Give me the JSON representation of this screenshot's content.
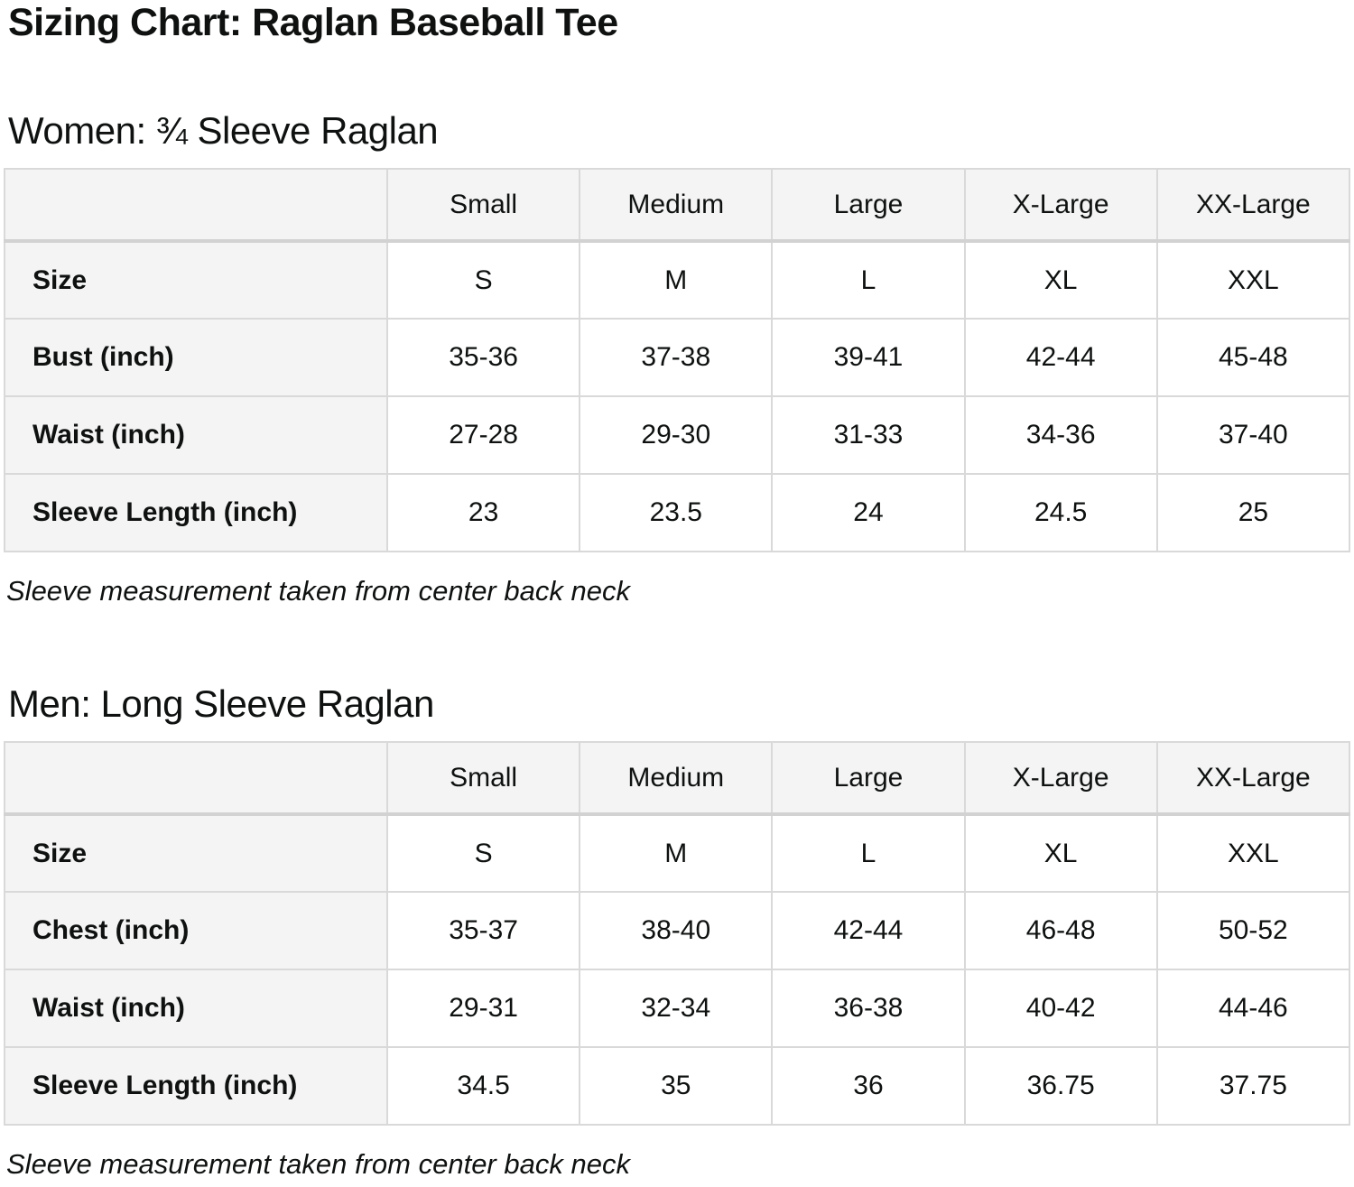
{
  "page": {
    "title": "Sizing Chart: Raglan Baseball Tee"
  },
  "colors": {
    "page_bg": "#ffffff",
    "text": "#0f1111",
    "label_cell_bg": "#f4f4f4",
    "data_cell_bg": "#ffffff",
    "border": "#d9d9d9"
  },
  "chart_data": [
    {
      "type": "table",
      "title": "Women: ¾ Sleeve Raglan",
      "column_headers": [
        "",
        "Small",
        "Medium",
        "Large",
        "X-Large",
        "XX-Large"
      ],
      "rows": [
        {
          "label": "Size",
          "values": [
            "S",
            "M",
            "L",
            "XL",
            "XXL"
          ]
        },
        {
          "label": "Bust (inch)",
          "values": [
            "35-36",
            "37-38",
            "39-41",
            "42-44",
            "45-48"
          ]
        },
        {
          "label": "Waist (inch)",
          "values": [
            "27-28",
            "29-30",
            "31-33",
            "34-36",
            "37-40"
          ]
        },
        {
          "label": "Sleeve Length (inch)",
          "values": [
            "23",
            "23.5",
            "24",
            "24.5",
            "25"
          ]
        }
      ],
      "footnote": "Sleeve measurement taken from center back neck"
    },
    {
      "type": "table",
      "title": "Men: Long Sleeve Raglan",
      "column_headers": [
        "",
        "Small",
        "Medium",
        "Large",
        "X-Large",
        "XX-Large"
      ],
      "rows": [
        {
          "label": "Size",
          "values": [
            "S",
            "M",
            "L",
            "XL",
            "XXL"
          ]
        },
        {
          "label": "Chest (inch)",
          "values": [
            "35-37",
            "38-40",
            "42-44",
            "46-48",
            "50-52"
          ]
        },
        {
          "label": "Waist (inch)",
          "values": [
            "29-31",
            "32-34",
            "36-38",
            "40-42",
            "44-46"
          ]
        },
        {
          "label": "Sleeve Length (inch)",
          "values": [
            "34.5",
            "35",
            "36",
            "36.75",
            "37.75"
          ]
        }
      ],
      "footnote": "Sleeve measurement taken from center back neck"
    }
  ]
}
